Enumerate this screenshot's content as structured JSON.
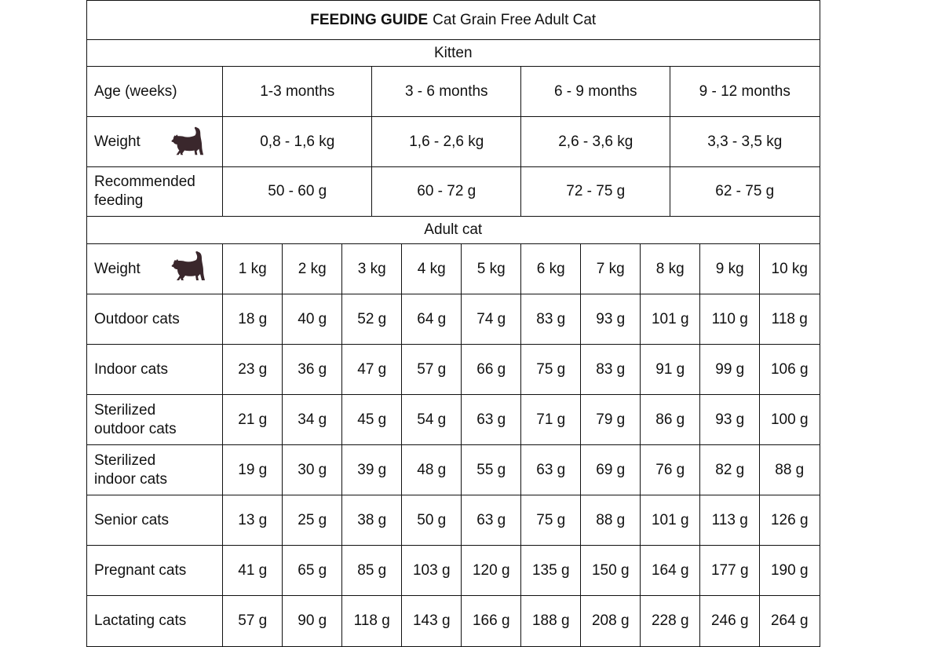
{
  "title": {
    "bold": "FEEDING GUIDE",
    "rest": "Cat Grain Free Adult Cat"
  },
  "kitten": {
    "header": "Kitten",
    "rows": [
      {
        "label": "Age (weeks)",
        "values": [
          "1-3 months",
          "3 - 6 months",
          "6 - 9 months",
          "9 - 12 months"
        ]
      },
      {
        "label": "Weight",
        "icon": "cat-icon",
        "values": [
          "0,8 - 1,6 kg",
          "1,6 - 2,6 kg",
          "2,6 - 3,6 kg",
          "3,3 - 3,5 kg"
        ]
      },
      {
        "label": "Recommended feeding",
        "values": [
          "50 - 60 g",
          "60 - 72 g",
          "72 - 75 g",
          "62 - 75 g"
        ]
      }
    ]
  },
  "adult": {
    "header": "Adult cat",
    "weight_label": "Weight",
    "weights": [
      "1 kg",
      "2 kg",
      "3 kg",
      "4 kg",
      "5 kg",
      "6 kg",
      "7 kg",
      "8 kg",
      "9 kg",
      "10 kg"
    ],
    "rows": [
      {
        "label": "Outdoor cats",
        "values": [
          "18 g",
          "40 g",
          "52 g",
          "64 g",
          "74 g",
          "83 g",
          "93 g",
          "101 g",
          "110 g",
          "118 g"
        ]
      },
      {
        "label": "Indoor cats",
        "values": [
          "23 g",
          "36 g",
          "47 g",
          "57 g",
          "66 g",
          "75 g",
          "83 g",
          "91 g",
          "99 g",
          "106 g"
        ]
      },
      {
        "label": "Sterilized outdoor cats",
        "values": [
          "21 g",
          "34 g",
          "45 g",
          "54 g",
          "63 g",
          "71 g",
          "79 g",
          "86 g",
          "93 g",
          "100 g"
        ]
      },
      {
        "label": "Sterilized indoor cats",
        "values": [
          "19 g",
          "30 g",
          "39 g",
          "48 g",
          "55 g",
          "63 g",
          "69 g",
          "76 g",
          "82 g",
          "88 g"
        ]
      },
      {
        "label": "Senior cats",
        "values": [
          "13 g",
          "25 g",
          "38 g",
          "50 g",
          "63 g",
          "75 g",
          "88 g",
          "101 g",
          "113 g",
          "126 g"
        ]
      },
      {
        "label": "Pregnant cats",
        "values": [
          "41 g",
          "65 g",
          "85 g",
          "103 g",
          "120 g",
          "135 g",
          "150 g",
          "164 g",
          "177 g",
          "190 g"
        ]
      },
      {
        "label": "Lactating cats",
        "values": [
          "57 g",
          "90 g",
          "118 g",
          "143 g",
          "166 g",
          "188 g",
          "208 g",
          "228 g",
          "246 g",
          "264 g"
        ]
      }
    ]
  },
  "colors": {
    "cat_icon": "#3a272c",
    "border": "#111111"
  }
}
